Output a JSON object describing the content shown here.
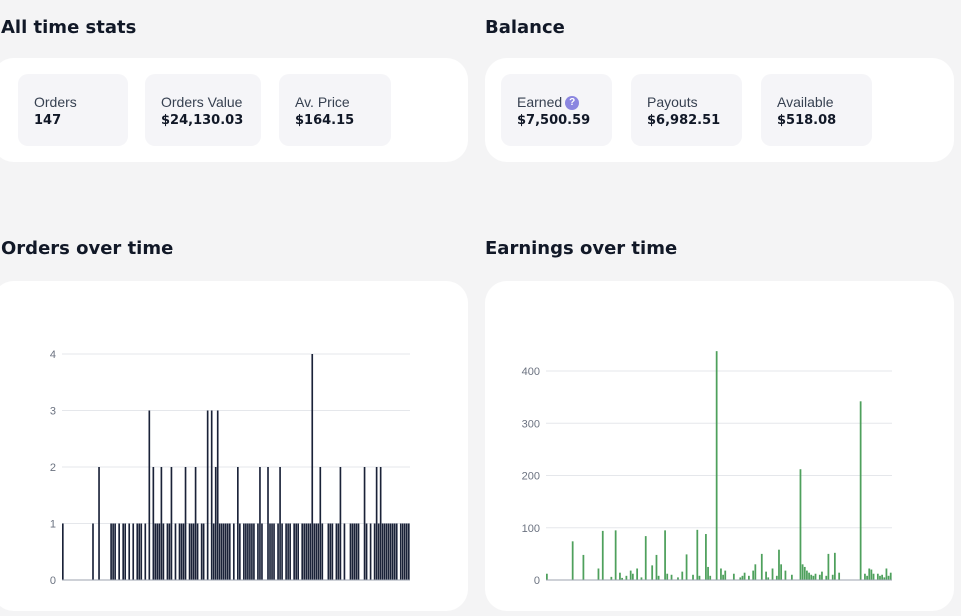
{
  "all_time_stats": {
    "title": "All time stats",
    "items": [
      {
        "label": "Orders",
        "value": "147"
      },
      {
        "label": "Orders Value",
        "value": "$24,130.03"
      },
      {
        "label": "Av. Price",
        "value": "$164.15"
      }
    ]
  },
  "balance": {
    "title": "Balance",
    "items": [
      {
        "label": "Earned",
        "value": "$7,500.59",
        "icon": "help-icon"
      },
      {
        "label": "Payouts",
        "value": "$6,982.51"
      },
      {
        "label": "Available",
        "value": "$518.08"
      }
    ]
  },
  "orders_title": "Orders over time",
  "earnings_title": "Earnings over time",
  "colors": {
    "background": "#f4f4f5",
    "orders_bar": "#1a2238",
    "earnings_bar": "#4ea05c",
    "help_icon": "#8b86e0"
  },
  "chart_data": [
    {
      "type": "bar",
      "title": "Orders over time",
      "series": [
        {
          "values": [
            1,
            0,
            0,
            0,
            0,
            0,
            0,
            0,
            0,
            0,
            0,
            0,
            0,
            0,
            0,
            1,
            0,
            0,
            2,
            0,
            0,
            0,
            0,
            0,
            1,
            1,
            1,
            0,
            1,
            0,
            1,
            1,
            0,
            1,
            0,
            1,
            0,
            1,
            1,
            1,
            0,
            1,
            0,
            3,
            0,
            2,
            1,
            1,
            1,
            2,
            1,
            0,
            1,
            1,
            2,
            0,
            1,
            0,
            1,
            1,
            1,
            2,
            0,
            1,
            1,
            1,
            2,
            1,
            0,
            1,
            1,
            0,
            3,
            0,
            3,
            1,
            2,
            3,
            1,
            1,
            1,
            1,
            1,
            1,
            0,
            1,
            0,
            2,
            1,
            0,
            1,
            1,
            1,
            1,
            1,
            1,
            0,
            1,
            2,
            1,
            0,
            0,
            2,
            1,
            1,
            1,
            0,
            1,
            2,
            1,
            0,
            1,
            1,
            1,
            0,
            1,
            1,
            1,
            0,
            1,
            1,
            1,
            1,
            1,
            4,
            1,
            1,
            1,
            2,
            1,
            0,
            0,
            1,
            1,
            1,
            0,
            1,
            1,
            2,
            0,
            1,
            0,
            0,
            1,
            1,
            1,
            1,
            1,
            0,
            0,
            2,
            1,
            0,
            1,
            0,
            1,
            2,
            1,
            2,
            1,
            1,
            1,
            1,
            1,
            1,
            1,
            1,
            0,
            1,
            1,
            1,
            1,
            1
          ]
        }
      ],
      "ylim": [
        0,
        4
      ],
      "yticks": [
        0,
        1,
        2,
        3,
        4
      ],
      "grid": true
    },
    {
      "type": "bar",
      "title": "Earnings over time",
      "series": [
        {
          "values": [
            12,
            0,
            0,
            0,
            0,
            0,
            0,
            0,
            0,
            0,
            0,
            0,
            74,
            0,
            0,
            0,
            0,
            48,
            0,
            0,
            0,
            0,
            0,
            0,
            22,
            0,
            94,
            0,
            0,
            0,
            6,
            0,
            95,
            0,
            14,
            4,
            0,
            8,
            0,
            18,
            12,
            0,
            22,
            0,
            5,
            0,
            84,
            0,
            0,
            28,
            0,
            48,
            8,
            0,
            0,
            95,
            12,
            0,
            10,
            0,
            0,
            5,
            0,
            16,
            0,
            49,
            0,
            0,
            10,
            0,
            96,
            8,
            0,
            0,
            88,
            25,
            8,
            0,
            0,
            438,
            0,
            22,
            10,
            18,
            0,
            0,
            0,
            12,
            0,
            0,
            5,
            8,
            14,
            0,
            8,
            0,
            18,
            30,
            0,
            0,
            50,
            0,
            16,
            5,
            0,
            22,
            0,
            8,
            58,
            30,
            0,
            18,
            0,
            0,
            10,
            0,
            0,
            0,
            212,
            30,
            25,
            18,
            14,
            10,
            8,
            12,
            0,
            10,
            16,
            0,
            8,
            50,
            0,
            10,
            52,
            0,
            14,
            0,
            0,
            0,
            0,
            0,
            0,
            0,
            0,
            0,
            342,
            0,
            12,
            8,
            22,
            20,
            12,
            0,
            12,
            8,
            10,
            5,
            22,
            8,
            14
          ]
        }
      ],
      "ylim": [
        0,
        400
      ],
      "yticks": [
        0,
        100,
        200,
        300,
        400
      ],
      "grid": true
    }
  ]
}
